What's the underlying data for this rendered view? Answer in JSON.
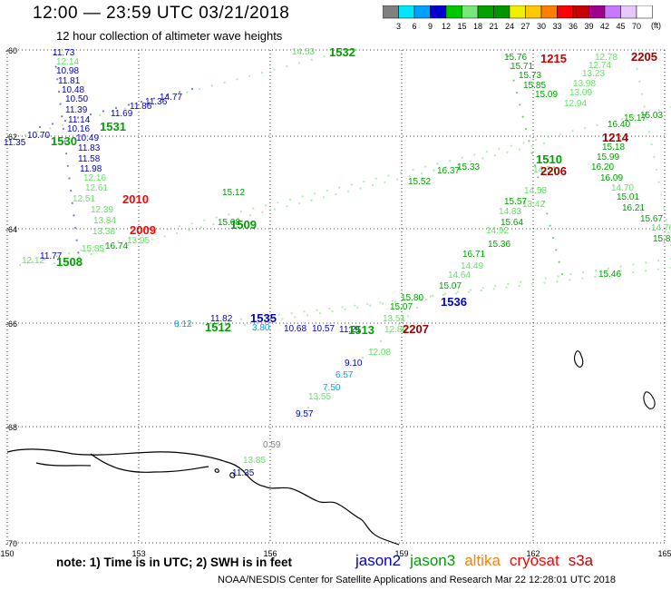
{
  "header": {
    "title": "12:00 — 23:59 UTC 03/21/2018",
    "subtitle": "12 hour collection of altimeter wave heights",
    "unit": "(ft)"
  },
  "colorbar": {
    "labels": [
      "3",
      "6",
      "9",
      "12",
      "15",
      "18",
      "21",
      "24",
      "27",
      "30",
      "33",
      "36",
      "39",
      "42",
      "45",
      "70"
    ],
    "colors": [
      "#808080",
      "#00e6ff",
      "#00a0ff",
      "#0000d0",
      "#00c800",
      "#78e678",
      "#00a000",
      "#009600",
      "#f0f000",
      "#ffc800",
      "#ff8000",
      "#ff0000",
      "#c80000",
      "#a0008c",
      "#c878ff",
      "#e6c8ff",
      "#ffffff"
    ]
  },
  "axes": {
    "lat_labels": [
      "-60",
      "-62",
      "-64",
      "-66",
      "-68",
      "-70"
    ],
    "lon_labels": [
      "150",
      "153",
      "156",
      "159",
      "162",
      "165"
    ]
  },
  "labels": [
    {
      "t": "11.73",
      "c": "#0000d0"
    },
    {
      "t": "12.14",
      "c": "#66e066"
    },
    {
      "t": "10.98",
      "c": "#0000d0"
    },
    {
      "t": "11.81",
      "c": "#0000d0"
    },
    {
      "t": "10.48",
      "c": "#0000d0"
    },
    {
      "t": "10.50",
      "c": "#0000d0"
    },
    {
      "t": "11.39",
      "c": "#0000d0"
    },
    {
      "t": "11.14",
      "c": "#0000d0"
    },
    {
      "t": "10.16",
      "c": "#0000d0"
    },
    {
      "t": "10.49",
      "c": "#0000d0"
    },
    {
      "t": "11.83",
      "c": "#0000d0"
    },
    {
      "t": "11.58",
      "c": "#0000d0"
    },
    {
      "t": "11.98",
      "c": "#0000d0"
    },
    {
      "t": "12.16",
      "c": "#66e066"
    },
    {
      "t": "12.61",
      "c": "#66e066"
    },
    {
      "t": "12.51",
      "c": "#66e066"
    },
    {
      "t": "12.39",
      "c": "#66e066"
    },
    {
      "t": "13.84",
      "c": "#66e066"
    },
    {
      "t": "13.38",
      "c": "#66e066"
    },
    {
      "t": "11.35",
      "c": "#0000d0"
    },
    {
      "t": "10.70",
      "c": "#0000d0"
    },
    {
      "t": "11.69",
      "c": "#0000d0"
    },
    {
      "t": "11.86",
      "c": "#0000d0"
    },
    {
      "t": "11.36",
      "c": "#0000d0"
    },
    {
      "t": "14.77",
      "c": "#0000d0"
    },
    {
      "t": "14.53",
      "c": "#66e066"
    },
    {
      "t": "12.12",
      "c": "#66e066"
    },
    {
      "t": "11.77",
      "c": "#0000d0"
    },
    {
      "t": "15.85",
      "c": "#66e066"
    },
    {
      "t": "16.74",
      "c": "#00a000"
    },
    {
      "t": "13.95",
      "c": "#66e066"
    },
    {
      "t": "15.12",
      "c": "#00a000"
    },
    {
      "t": "15.08",
      "c": "#00a000"
    },
    {
      "t": "15.52",
      "c": "#00a000"
    },
    {
      "t": "16.37",
      "c": "#00a000"
    },
    {
      "t": "15.33",
      "c": "#00a000"
    },
    {
      "t": "15.76",
      "c": "#00a000"
    },
    {
      "t": "15.71",
      "c": "#00a000"
    },
    {
      "t": "15.73",
      "c": "#00a000"
    },
    {
      "t": "15.85",
      "c": "#00a000"
    },
    {
      "t": "15.09",
      "c": "#00a000"
    },
    {
      "t": "12.78",
      "c": "#66e066"
    },
    {
      "t": "12.74",
      "c": "#66e066"
    },
    {
      "t": "13.23",
      "c": "#66e066"
    },
    {
      "t": "13.98",
      "c": "#66e066"
    },
    {
      "t": "13.09",
      "c": "#66e066"
    },
    {
      "t": "12.94",
      "c": "#66e066"
    },
    {
      "t": "16.40",
      "c": "#00a000"
    },
    {
      "t": "15.17",
      "c": "#00a000"
    },
    {
      "t": "15.03",
      "c": "#00a000"
    },
    {
      "t": "15.18",
      "c": "#00a000"
    },
    {
      "t": "15.99",
      "c": "#00a000"
    },
    {
      "t": "16.20",
      "c": "#00a000"
    },
    {
      "t": "16.09",
      "c": "#00a000"
    },
    {
      "t": "15.01",
      "c": "#00a000"
    },
    {
      "t": "16.21",
      "c": "#00a000"
    },
    {
      "t": "15.67",
      "c": "#00a000"
    },
    {
      "t": "14.76",
      "c": "#66e066"
    },
    {
      "t": "15.8",
      "c": "#00a000"
    },
    {
      "t": "14.70",
      "c": "#66e066"
    },
    {
      "t": "14.34",
      "c": "#66e066"
    },
    {
      "t": "14.58",
      "c": "#66e066"
    },
    {
      "t": "13.42",
      "c": "#66e066"
    },
    {
      "t": "15.57",
      "c": "#00a000"
    },
    {
      "t": "14.83",
      "c": "#66e066"
    },
    {
      "t": "15.64",
      "c": "#00a000"
    },
    {
      "t": "14.92",
      "c": "#66e066"
    },
    {
      "t": "15.36",
      "c": "#00a000"
    },
    {
      "t": "16.71",
      "c": "#00a000"
    },
    {
      "t": "14.49",
      "c": "#66e066"
    },
    {
      "t": "14.64",
      "c": "#66e066"
    },
    {
      "t": "15.07",
      "c": "#00a000"
    },
    {
      "t": "15.80",
      "c": "#00a000"
    },
    {
      "t": "15.07",
      "c": "#00a000"
    },
    {
      "t": "13.51",
      "c": "#66e066"
    },
    {
      "t": "12.86",
      "c": "#66e066"
    },
    {
      "t": "12.08",
      "c": "#66e066"
    },
    {
      "t": "9.10",
      "c": "#0000d0"
    },
    {
      "t": "6.57",
      "c": "#00a0ff"
    },
    {
      "t": "7.50",
      "c": "#00a0ff"
    },
    {
      "t": "13.55",
      "c": "#66e066"
    },
    {
      "t": "9.57",
      "c": "#0000d0"
    },
    {
      "t": "11.82",
      "c": "#0000d0"
    },
    {
      "t": "8.12",
      "c": "#00a0ff"
    },
    {
      "t": "3.80",
      "c": "#00a0ff"
    },
    {
      "t": "10.68",
      "c": "#0000d0"
    },
    {
      "t": "10.57",
      "c": "#0000d0"
    },
    {
      "t": "11.21",
      "c": "#0000d0"
    },
    {
      "t": "15.46",
      "c": "#00a000"
    },
    {
      "t": "0.59",
      "c": "#808080"
    },
    {
      "t": "13.85",
      "c": "#66e066"
    },
    {
      "t": "11.35",
      "c": "#0000d0"
    }
  ],
  "passes": [
    {
      "t": "1532",
      "c": "#00a000"
    },
    {
      "t": "1531",
      "c": "#00a000"
    },
    {
      "t": "1530",
      "c": "#00a000"
    },
    {
      "t": "1509",
      "c": "#00a000"
    },
    {
      "t": "1508",
      "c": "#00a000"
    },
    {
      "t": "1510",
      "c": "#00a000"
    },
    {
      "t": "1512",
      "c": "#00a000"
    },
    {
      "t": "1513",
      "c": "#00a000"
    },
    {
      "t": "1535",
      "c": "#0000d0"
    },
    {
      "t": "1536",
      "c": "#0000d0"
    },
    {
      "t": "2010",
      "c": "#ff0000"
    },
    {
      "t": "2009",
      "c": "#ff0000"
    },
    {
      "t": "1215",
      "c": "#c80000"
    },
    {
      "t": "2205",
      "c": "#a00000"
    },
    {
      "t": "1214",
      "c": "#a00000"
    },
    {
      "t": "2206",
      "c": "#a00000"
    },
    {
      "t": "2207",
      "c": "#a00000"
    }
  ],
  "footer": {
    "note": "note: 1) Time is in UTC; 2) SWH is in feet",
    "sats": [
      {
        "name": "jason2",
        "color": "#0000d0"
      },
      {
        "name": "jason3",
        "color": "#00a000"
      },
      {
        "name": "altika",
        "color": "#ff8000"
      },
      {
        "name": "cryosat",
        "color": "#ff0000"
      },
      {
        "name": "s3a",
        "color": "#c80000"
      }
    ],
    "credit": "NOAA/NESDIS Center for Satellite Applications and Research    Mar 22 12:28:01 UTC 2018"
  }
}
